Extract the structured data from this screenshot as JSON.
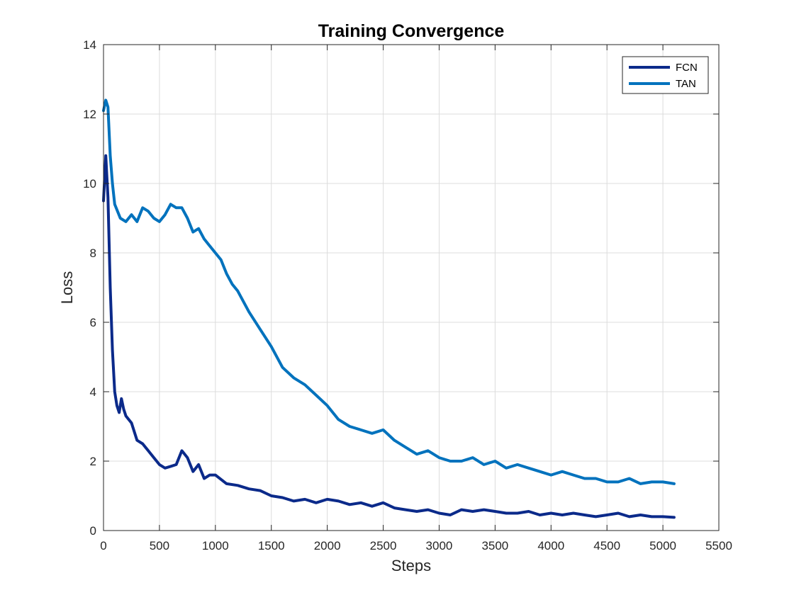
{
  "chart_data": {
    "type": "line",
    "title": "Training Convergence",
    "xlabel": "Steps",
    "ylabel": "Loss",
    "xlim": [
      0,
      5500
    ],
    "ylim": [
      0,
      14
    ],
    "xticks": [
      0,
      500,
      1000,
      1500,
      2000,
      2500,
      3000,
      3500,
      4000,
      4500,
      5000,
      5500
    ],
    "yticks": [
      0,
      2,
      4,
      6,
      8,
      10,
      12,
      14
    ],
    "grid": true,
    "legend_position": "top-right",
    "series": [
      {
        "name": "FCN",
        "color": "#0b2a8a",
        "x": [
          0,
          20,
          40,
          60,
          80,
          100,
          120,
          140,
          160,
          180,
          200,
          250,
          300,
          350,
          400,
          450,
          500,
          550,
          600,
          650,
          700,
          750,
          800,
          850,
          900,
          950,
          1000,
          1100,
          1200,
          1300,
          1400,
          1500,
          1600,
          1700,
          1800,
          1900,
          2000,
          2100,
          2200,
          2300,
          2400,
          2500,
          2600,
          2700,
          2800,
          2900,
          3000,
          3100,
          3200,
          3300,
          3400,
          3500,
          3600,
          3700,
          3800,
          3900,
          4000,
          4100,
          4200,
          4300,
          4400,
          4500,
          4600,
          4700,
          4800,
          4900,
          5000,
          5100
        ],
        "y": [
          9.5,
          10.8,
          9.6,
          7.0,
          5.2,
          4.0,
          3.6,
          3.4,
          3.8,
          3.5,
          3.3,
          3.1,
          2.6,
          2.5,
          2.3,
          2.1,
          1.9,
          1.8,
          1.85,
          1.9,
          2.3,
          2.1,
          1.7,
          1.9,
          1.5,
          1.6,
          1.6,
          1.35,
          1.3,
          1.2,
          1.15,
          1.0,
          0.95,
          0.85,
          0.9,
          0.8,
          0.9,
          0.85,
          0.75,
          0.8,
          0.7,
          0.8,
          0.65,
          0.6,
          0.55,
          0.6,
          0.5,
          0.45,
          0.6,
          0.55,
          0.6,
          0.55,
          0.5,
          0.5,
          0.55,
          0.45,
          0.5,
          0.45,
          0.5,
          0.45,
          0.4,
          0.45,
          0.5,
          0.4,
          0.45,
          0.4,
          0.4,
          0.38
        ]
      },
      {
        "name": "TAN",
        "color": "#0072bd",
        "x": [
          0,
          20,
          40,
          60,
          80,
          100,
          150,
          200,
          250,
          300,
          350,
          400,
          450,
          500,
          550,
          600,
          650,
          700,
          750,
          800,
          850,
          900,
          950,
          1000,
          1050,
          1100,
          1150,
          1200,
          1300,
          1400,
          1500,
          1600,
          1700,
          1800,
          1900,
          2000,
          2100,
          2200,
          2300,
          2400,
          2500,
          2600,
          2700,
          2800,
          2900,
          3000,
          3100,
          3200,
          3300,
          3400,
          3500,
          3600,
          3700,
          3800,
          3900,
          4000,
          4100,
          4200,
          4300,
          4400,
          4500,
          4600,
          4700,
          4800,
          4900,
          5000,
          5100
        ],
        "y": [
          12.1,
          12.4,
          12.2,
          10.8,
          10.0,
          9.4,
          9.0,
          8.9,
          9.1,
          8.9,
          9.3,
          9.2,
          9.0,
          8.9,
          9.1,
          9.4,
          9.3,
          9.3,
          9.0,
          8.6,
          8.7,
          8.4,
          8.2,
          8.0,
          7.8,
          7.4,
          7.1,
          6.9,
          6.3,
          5.8,
          5.3,
          4.7,
          4.4,
          4.2,
          3.9,
          3.6,
          3.2,
          3.0,
          2.9,
          2.8,
          2.9,
          2.6,
          2.4,
          2.2,
          2.3,
          2.1,
          2.0,
          2.0,
          2.1,
          1.9,
          2.0,
          1.8,
          1.9,
          1.8,
          1.7,
          1.6,
          1.7,
          1.6,
          1.5,
          1.5,
          1.4,
          1.4,
          1.5,
          1.35,
          1.4,
          1.4,
          1.35
        ]
      }
    ]
  }
}
